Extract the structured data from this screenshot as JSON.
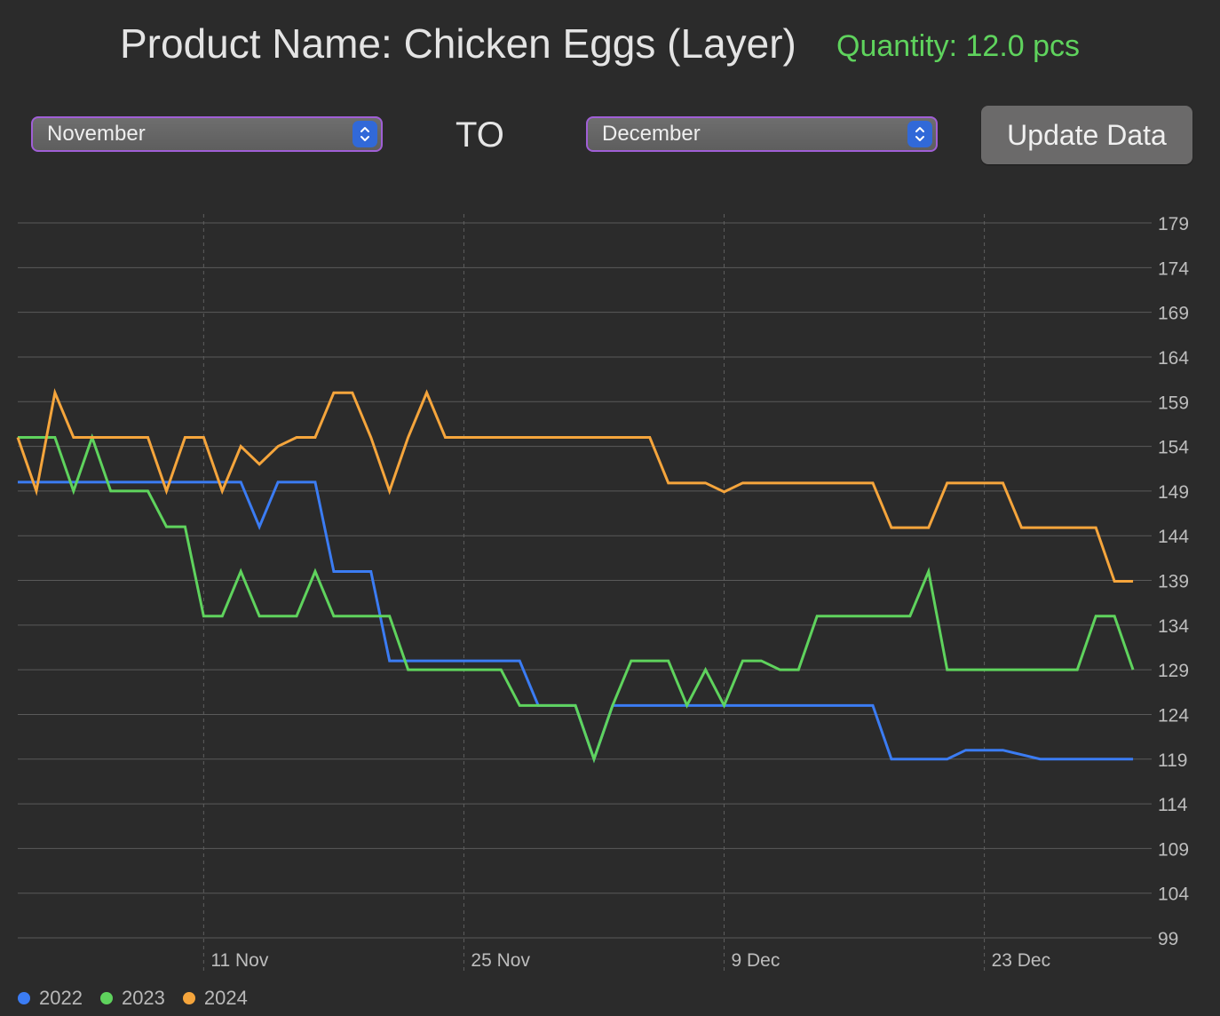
{
  "header": {
    "title": "Product Name: Chicken Eggs (Layer)",
    "quantity": "Quantity: 12.0 pcs",
    "quantity_color": "#5fd35d"
  },
  "controls": {
    "from_month": "November",
    "to_label": "TO",
    "to_month": "December",
    "update_button": "Update Data"
  },
  "chart_data": {
    "type": "line",
    "title": "",
    "xlabel": "",
    "ylabel": "",
    "ylim": [
      99,
      179
    ],
    "y_ticks": [
      179,
      174,
      169,
      164,
      159,
      154,
      149,
      144,
      139,
      134,
      129,
      124,
      119,
      114,
      109,
      104,
      99
    ],
    "y_axis_position": "right",
    "xlim": [
      0,
      61
    ],
    "x_ticks": [
      {
        "x": 10,
        "label": "11 Nov"
      },
      {
        "x": 24,
        "label": "25 Nov"
      },
      {
        "x": 38,
        "label": "9 Dec"
      },
      {
        "x": 52,
        "label": "23 Dec"
      }
    ],
    "grid": true,
    "legend": "bottom-left",
    "series": [
      {
        "name": "2022",
        "color": "#3b7cf3",
        "values": [
          150,
          150,
          150,
          150,
          150,
          150,
          150,
          150,
          150,
          150,
          150,
          150,
          150,
          145,
          150,
          150,
          150,
          140,
          140,
          140,
          130,
          130,
          130,
          130,
          130,
          130,
          130,
          130,
          125,
          125,
          125,
          119,
          125,
          125,
          125,
          125,
          125,
          125,
          125,
          125,
          125,
          125,
          125,
          125,
          125,
          125,
          125,
          119,
          119,
          119,
          119,
          120,
          120,
          120,
          119.5,
          119,
          119,
          119,
          119,
          119,
          119
        ]
      },
      {
        "name": "2023",
        "color": "#5fd35d",
        "values": [
          155,
          155,
          155,
          149,
          155,
          149,
          149,
          149,
          145,
          145,
          135,
          135,
          140,
          135,
          135,
          135,
          140,
          135,
          135,
          135,
          135,
          129,
          129,
          129,
          129,
          129,
          129,
          125,
          125,
          125,
          125,
          119,
          125,
          130,
          130,
          130,
          125,
          129,
          125,
          130,
          130,
          129,
          129,
          135,
          135,
          135,
          135,
          135,
          135,
          140,
          129,
          129,
          129,
          129,
          129,
          129,
          129,
          129,
          135,
          135,
          129
        ]
      },
      {
        "name": "2024",
        "color": "#f5a53c",
        "values": [
          155,
          149,
          160,
          155,
          155,
          155,
          155,
          155,
          149,
          155,
          155,
          149,
          154,
          152,
          154,
          155,
          155,
          160,
          160,
          155,
          149,
          155,
          160,
          155,
          155,
          155,
          155,
          155,
          155,
          155,
          155,
          155,
          155,
          155,
          155,
          149.9,
          149.9,
          149.9,
          148.9,
          149.9,
          149.9,
          149.9,
          149.9,
          149.9,
          149.9,
          149.9,
          149.9,
          144.9,
          144.9,
          144.9,
          149.9,
          149.9,
          149.9,
          149.9,
          144.9,
          144.9,
          144.9,
          144.9,
          144.9,
          138.9,
          138.9
        ]
      }
    ]
  }
}
